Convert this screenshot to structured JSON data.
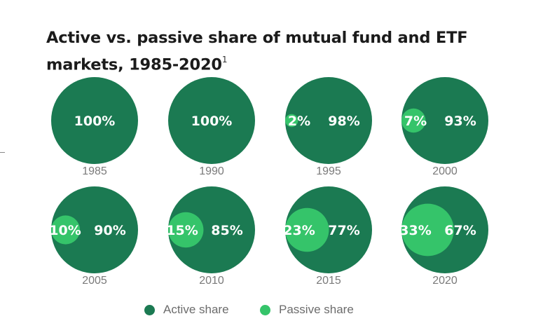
{
  "chart_data": {
    "type": "pie",
    "title": "Active vs. passive share of mutual fund and ETF markets, 1985-2020",
    "title_footnote": "1",
    "colors": {
      "active": "#1b7a52",
      "passive": "#35c46a"
    },
    "legend": [
      {
        "key": "active",
        "label": "Active share"
      },
      {
        "key": "passive",
        "label": "Passive share"
      }
    ],
    "panels": [
      {
        "year": "1985",
        "active": 100,
        "passive": 0,
        "active_label": "100%",
        "passive_label": ""
      },
      {
        "year": "1990",
        "active": 100,
        "passive": 0,
        "active_label": "100%",
        "passive_label": ""
      },
      {
        "year": "1995",
        "active": 98,
        "passive": 2,
        "active_label": "98%",
        "passive_label": "2%"
      },
      {
        "year": "2000",
        "active": 93,
        "passive": 7,
        "active_label": "93%",
        "passive_label": "7%"
      },
      {
        "year": "2005",
        "active": 90,
        "passive": 10,
        "active_label": "90%",
        "passive_label": "10%"
      },
      {
        "year": "2010",
        "active": 85,
        "passive": 15,
        "active_label": "85%",
        "passive_label": "15%"
      },
      {
        "year": "2015",
        "active": 77,
        "passive": 23,
        "active_label": "77%",
        "passive_label": "23%"
      },
      {
        "year": "2020",
        "active": 67,
        "passive": 33,
        "active_label": "67%",
        "passive_label": "33%"
      }
    ]
  }
}
